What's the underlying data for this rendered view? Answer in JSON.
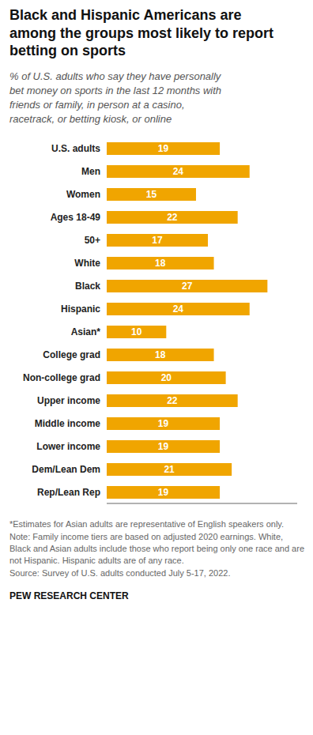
{
  "chart_data": {
    "type": "bar",
    "orientation": "horizontal",
    "title": "Black and Hispanic Americans are\namong the groups most likely to report\nbetting on sports",
    "subtitle": "% of U.S. adults who say they have personally\nbet money on sports in the last 12 months with\nfriends or family, in person at a casino,\nracetrack, or betting kiosk, or online",
    "categories": [
      "U.S. adults",
      "Men",
      "Women",
      "Ages 18-49",
      "50+",
      "White",
      "Black",
      "Hispanic",
      "Asian*",
      "College grad",
      "Non-college grad",
      "Upper income",
      "Middle income",
      "Lower income",
      "Dem/Lean Dem",
      "Rep/Lean Rep"
    ],
    "values": [
      19,
      24,
      15,
      22,
      17,
      18,
      27,
      24,
      10,
      18,
      20,
      22,
      19,
      19,
      21,
      19
    ],
    "color": "#F0A500",
    "xlim": [
      0,
      32
    ],
    "data_labels": true,
    "tick_labels": "y",
    "annotations": [
      "*Estimates for Asian adults are representative of English speakers only.",
      "Note: Family income tiers are based on adjusted 2020 earnings. White, Black and Asian adults include those who report being only one race and are not Hispanic. Hispanic adults are of any race.",
      "Source: Survey of U.S. adults conducted July 5-17, 2022.",
      "PEW RESEARCH CENTER"
    ]
  }
}
